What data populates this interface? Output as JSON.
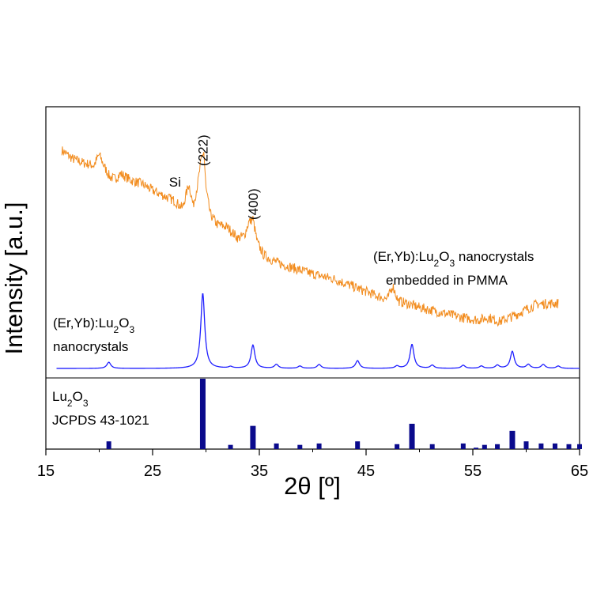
{
  "chart_data": {
    "type": "line",
    "xlabel": "2θ [º]",
    "ylabel": "Intensity [a.u.]",
    "xlim": [
      15,
      65
    ],
    "xticks": [
      15,
      25,
      35,
      45,
      55,
      65
    ],
    "grid": false,
    "panels": [
      {
        "name": "pmma",
        "label_lines": [
          "(Er,Yb):Lu2O3 nanocrystals",
          "embedded in PMMA"
        ],
        "color": "#f28c1e",
        "x": [
          16.5,
          17.5,
          18.5,
          19.5,
          20.0,
          20.5,
          21.0,
          21.5,
          22.0,
          23.0,
          24.0,
          25.0,
          26.0,
          27.0,
          27.8,
          28.4,
          28.8,
          29.2,
          29.6,
          29.8,
          30.0,
          30.4,
          31.0,
          32.0,
          33.0,
          33.6,
          34.0,
          34.4,
          34.8,
          35.4,
          36.0,
          37.0,
          38.0,
          40.0,
          42.0,
          44.0,
          46.0,
          47.0,
          47.5,
          48.0,
          50.0,
          52.0,
          54.0,
          55.5,
          56.5,
          57.5,
          59.0,
          61.0,
          63.0
        ],
        "y": [
          258,
          248,
          243,
          240,
          253,
          238,
          226,
          224,
          230,
          222,
          218,
          210,
          204,
          198,
          189,
          218,
          192,
          216,
          250,
          256,
          212,
          182,
          170,
          166,
          153,
          156,
          172,
          176,
          148,
          133,
          128,
          122,
          118,
          110,
          104,
          94,
          84,
          80,
          96,
          78,
          70,
          64,
          58,
          55,
          58,
          53,
          61,
          74,
          75
        ]
      },
      {
        "name": "nanocrystals",
        "label_lines": [
          "(Er,Yb):Lu2O3",
          "nanocrystals"
        ],
        "color": "#1f1fff",
        "peaks": [
          {
            "x": 20.9,
            "h": 8
          },
          {
            "x": 29.7,
            "h": 97
          },
          {
            "x": 32.3,
            "h": 2
          },
          {
            "x": 34.4,
            "h": 30
          },
          {
            "x": 36.6,
            "h": 5
          },
          {
            "x": 38.8,
            "h": 3
          },
          {
            "x": 40.6,
            "h": 5
          },
          {
            "x": 44.2,
            "h": 10
          },
          {
            "x": 47.9,
            "h": 3
          },
          {
            "x": 49.3,
            "h": 31
          },
          {
            "x": 51.2,
            "h": 4
          },
          {
            "x": 54.1,
            "h": 4
          },
          {
            "x": 55.8,
            "h": 3
          },
          {
            "x": 57.3,
            "h": 4
          },
          {
            "x": 58.7,
            "h": 22
          },
          {
            "x": 60.2,
            "h": 5
          },
          {
            "x": 61.6,
            "h": 5
          },
          {
            "x": 63.0,
            "h": 3
          }
        ]
      },
      {
        "name": "jcpds",
        "label_lines": [
          "Lu2O3",
          "JCPDS 43-1021"
        ],
        "type": "bar",
        "color": "#0a0a8c",
        "x": [
          20.9,
          29.7,
          32.3,
          34.4,
          36.6,
          38.8,
          40.6,
          44.2,
          47.9,
          49.3,
          51.2,
          54.1,
          55.3,
          56.1,
          57.3,
          58.7,
          60.0,
          61.4,
          62.7,
          64.0,
          65.0
        ],
        "values": [
          11,
          100,
          6,
          33,
          8,
          6,
          8,
          11,
          7,
          36,
          7,
          8,
          2,
          6,
          7,
          26,
          11,
          8,
          8,
          7,
          7
        ]
      }
    ],
    "annotations": [
      {
        "text": "Si",
        "x": 28.4
      },
      {
        "text": "(222)",
        "x": 29.7
      },
      {
        "text": "(400)",
        "x": 34.4
      }
    ]
  }
}
